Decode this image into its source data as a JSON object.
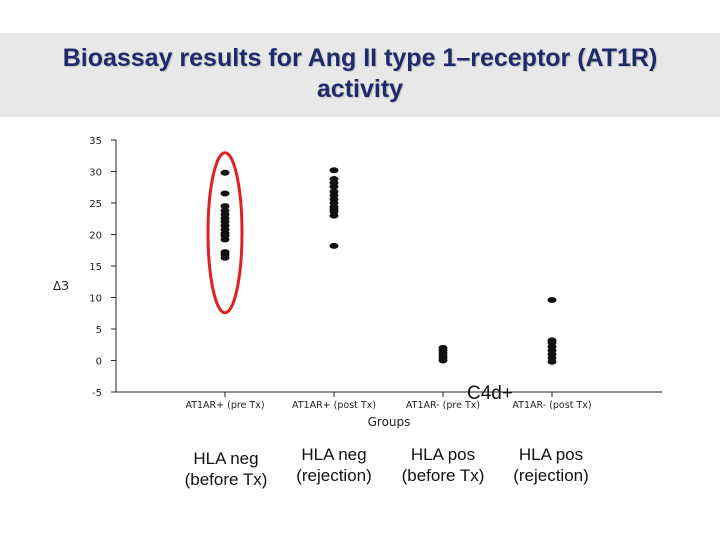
{
  "slide": {
    "title_line1": "Bioassay results for Ang II type 1–receptor (AT1R)",
    "title_line2": "activity",
    "annotation": "C4d+",
    "group_descriptions": [
      {
        "line1": "HLA neg",
        "line2": "(before Tx)"
      },
      {
        "line1": "HLA neg",
        "line2": "(rejection)"
      },
      {
        "line1": "HLA pos",
        "line2": "(before Tx)"
      },
      {
        "line1": "HLA pos",
        "line2": "(rejection)"
      }
    ]
  },
  "chart_data": {
    "type": "scatter",
    "title": "",
    "xlabel": "Groups",
    "ylabel": "ΔЗ",
    "ylim": [
      -5,
      35
    ],
    "yticks": [
      35,
      30,
      25,
      20,
      15,
      10,
      5,
      0,
      -5
    ],
    "grid": false,
    "categories": [
      "AT1AR+ (pre Tx)",
      "AT1AR+ (post Tx)",
      "AT1AR- (pre Tx)",
      "AT1AR- (post Tx)"
    ],
    "series": [
      {
        "values_by_category": [
          [
            29.8,
            26.5,
            24.5,
            23.8,
            23.2,
            22.6,
            22.0,
            21.4,
            20.8,
            20.2,
            19.8,
            19.2,
            17.2,
            16.8,
            16.3
          ],
          [
            30.2,
            28.8,
            28.2,
            27.6,
            26.8,
            26.2,
            25.6,
            25.0,
            24.4,
            24.0,
            23.6,
            23.0,
            18.2
          ],
          [
            2.0,
            1.6,
            1.2,
            0.8,
            0.4,
            0.0
          ],
          [
            9.6,
            3.2,
            2.8,
            2.2,
            1.6,
            1.0,
            0.4,
            -0.2
          ]
        ]
      }
    ],
    "highlight": {
      "category": "AT1AR+ (pre Tx)",
      "shape": "ellipse",
      "color": "#e02020"
    },
    "marker_color": "#111111"
  }
}
